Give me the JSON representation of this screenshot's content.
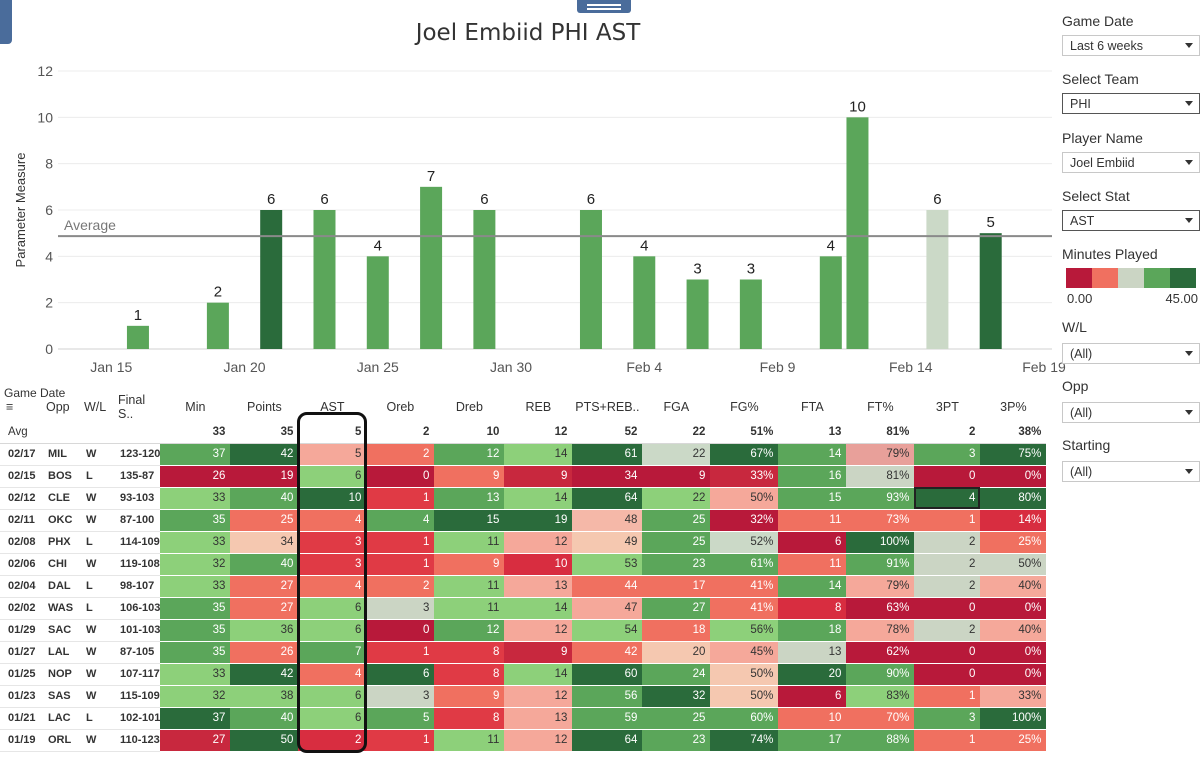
{
  "chart_data": {
    "type": "bar",
    "title": "Joel Embiid PHI AST",
    "ylabel": "Parameter Measure",
    "ylim": [
      0,
      12
    ],
    "yticks": [
      0,
      2,
      4,
      6,
      8,
      10,
      12
    ],
    "xticks": [
      "Jan 15",
      "Jan 20",
      "Jan 25",
      "Jan 30",
      "Feb 4",
      "Feb 9",
      "Feb 14",
      "Feb 19"
    ],
    "average": 4.87,
    "average_label": "Average",
    "grid": true,
    "bars": [
      {
        "date": "01/16",
        "value": 1,
        "color": "#5ba65a"
      },
      {
        "date": "01/19",
        "value": 2,
        "color": "#5ba65a"
      },
      {
        "date": "01/21",
        "value": 6,
        "color": "#2a6b3b"
      },
      {
        "date": "01/23",
        "value": 6,
        "color": "#5ba65a"
      },
      {
        "date": "01/25",
        "value": 4,
        "color": "#5ba65a"
      },
      {
        "date": "01/27",
        "value": 7,
        "color": "#5ba65a"
      },
      {
        "date": "01/29",
        "value": 6,
        "color": "#5ba65a"
      },
      {
        "date": "02/02",
        "value": 6,
        "color": "#5ba65a"
      },
      {
        "date": "02/04",
        "value": 4,
        "color": "#5ba65a"
      },
      {
        "date": "02/06",
        "value": 3,
        "color": "#5ba65a"
      },
      {
        "date": "02/08",
        "value": 3,
        "color": "#5ba65a"
      },
      {
        "date": "02/11",
        "value": 4,
        "color": "#5ba65a"
      },
      {
        "date": "02/12",
        "value": 10,
        "color": "#5ba65a"
      },
      {
        "date": "02/15",
        "value": 6,
        "color": "#cbd9c7"
      },
      {
        "date": "02/17",
        "value": 5,
        "color": "#2a6b3b"
      }
    ]
  },
  "filters": [
    {
      "label": "Game Date",
      "value": "Last 6 weeks"
    },
    {
      "label": "Select Team",
      "value": "PHI"
    },
    {
      "label": "Player Name",
      "value": "Joel Embiid"
    },
    {
      "label": "Select Stat",
      "value": "AST"
    }
  ],
  "minutes_played": {
    "label": "Minutes Played",
    "min": "0.00",
    "max": "45.00",
    "colors": [
      "#b8193a",
      "#f07060",
      "#cbd5c4",
      "#5ba65a",
      "#2a6b3b"
    ]
  },
  "filters2": [
    {
      "label": "W/L",
      "value": "(All)"
    },
    {
      "label": "Opp",
      "value": "(All)"
    },
    {
      "label": "Starting",
      "value": "(All)"
    }
  ],
  "table": {
    "game_date_label": "Game Date",
    "headers": [
      "Opp",
      "W/L",
      "Final S..",
      "Min",
      "Points",
      "AST",
      "Oreb",
      "Dreb",
      "REB",
      "PTS+REB..",
      "FGA",
      "FG%",
      "FTA",
      "FT%",
      "3PT",
      "3P%"
    ],
    "avg": {
      "label": "Avg",
      "values": [
        "33",
        "35",
        "5",
        "2",
        "10",
        "12",
        "52",
        "22",
        "51%",
        "13",
        "81%",
        "2",
        "38%"
      ]
    },
    "rows": [
      {
        "date": "02/17",
        "opp": "MIL",
        "wl": "W",
        "score": "123-120",
        "cells": [
          [
            "37",
            "#5ba65a"
          ],
          [
            "42",
            "#2a6b3b"
          ],
          [
            "5",
            "#f5a89a"
          ],
          [
            "2",
            "#f07060"
          ],
          [
            "12",
            "#5ba65a"
          ],
          [
            "14",
            "#8dd07a"
          ],
          [
            "61",
            "#2a6b3b"
          ],
          [
            "22",
            "#cbd9c7"
          ],
          [
            "67%",
            "#2a6b3b"
          ],
          [
            "14",
            "#5ba65a"
          ],
          [
            "79%",
            "#e8a09a"
          ],
          [
            "3",
            "#5ba65a"
          ],
          [
            "75%",
            "#2a6b3b"
          ]
        ]
      },
      {
        "date": "02/15",
        "opp": "BOS",
        "wl": "L",
        "score": "135-87",
        "cells": [
          [
            "26",
            "#b8193a"
          ],
          [
            "19",
            "#b8193a"
          ],
          [
            "6",
            "#8dd07a"
          ],
          [
            "0",
            "#b8193a"
          ],
          [
            "9",
            "#f07060"
          ],
          [
            "9",
            "#c8283e"
          ],
          [
            "34",
            "#b8193a"
          ],
          [
            "9",
            "#b8193a"
          ],
          [
            "33%",
            "#c8283e"
          ],
          [
            "16",
            "#5ba65a"
          ],
          [
            "81%",
            "#cbd5c4"
          ],
          [
            "0",
            "#b8193a"
          ],
          [
            "0%",
            "#b8193a"
          ]
        ]
      },
      {
        "date": "02/12",
        "opp": "CLE",
        "wl": "W",
        "score": "93-103",
        "cells": [
          [
            "33",
            "#8dd07a"
          ],
          [
            "40",
            "#5ba65a"
          ],
          [
            "10",
            "#2a6b3b"
          ],
          [
            "1",
            "#e03a45"
          ],
          [
            "13",
            "#5ba65a"
          ],
          [
            "14",
            "#8dd07a"
          ],
          [
            "64",
            "#2a6b3b"
          ],
          [
            "22",
            "#8dd07a"
          ],
          [
            "50%",
            "#f5a89a"
          ],
          [
            "15",
            "#5ba65a"
          ],
          [
            "93%",
            "#5ba65a"
          ],
          [
            "4",
            "#2a6b3b"
          ],
          [
            "80%",
            "#2a6b3b"
          ]
        ]
      },
      {
        "date": "02/11",
        "opp": "OKC",
        "wl": "W",
        "score": "87-100",
        "cells": [
          [
            "35",
            "#5ba65a"
          ],
          [
            "25",
            "#f07060"
          ],
          [
            "4",
            "#f07060"
          ],
          [
            "4",
            "#5ba65a"
          ],
          [
            "15",
            "#2a6b3b"
          ],
          [
            "19",
            "#2a6b3b"
          ],
          [
            "48",
            "#f5b8a8"
          ],
          [
            "25",
            "#5ba65a"
          ],
          [
            "32%",
            "#b8193a"
          ],
          [
            "11",
            "#f07060"
          ],
          [
            "73%",
            "#f07060"
          ],
          [
            "1",
            "#f07060"
          ],
          [
            "14%",
            "#d82d40"
          ]
        ]
      },
      {
        "date": "02/08",
        "opp": "PHX",
        "wl": "L",
        "score": "114-109",
        "cells": [
          [
            "33",
            "#8dd07a"
          ],
          [
            "34",
            "#f5c8b0"
          ],
          [
            "3",
            "#e03a45"
          ],
          [
            "1",
            "#e03a45"
          ],
          [
            "11",
            "#8dd07a"
          ],
          [
            "12",
            "#f5a89a"
          ],
          [
            "49",
            "#f5c8b0"
          ],
          [
            "25",
            "#5ba65a"
          ],
          [
            "52%",
            "#cbd9c7"
          ],
          [
            "6",
            "#b8193a"
          ],
          [
            "100%",
            "#2a6b3b"
          ],
          [
            "2",
            "#cbd5c4"
          ],
          [
            "25%",
            "#f07060"
          ]
        ]
      },
      {
        "date": "02/06",
        "opp": "CHI",
        "wl": "W",
        "score": "119-108",
        "cells": [
          [
            "32",
            "#8dd07a"
          ],
          [
            "40",
            "#5ba65a"
          ],
          [
            "3",
            "#e03a45"
          ],
          [
            "1",
            "#e03a45"
          ],
          [
            "9",
            "#f07060"
          ],
          [
            "10",
            "#d82d40"
          ],
          [
            "53",
            "#8dd07a"
          ],
          [
            "23",
            "#5ba65a"
          ],
          [
            "61%",
            "#5ba65a"
          ],
          [
            "11",
            "#f07060"
          ],
          [
            "91%",
            "#5ba65a"
          ],
          [
            "2",
            "#cbd5c4"
          ],
          [
            "50%",
            "#cbd5c4"
          ]
        ]
      },
      {
        "date": "02/04",
        "opp": "DAL",
        "wl": "L",
        "score": "98-107",
        "cells": [
          [
            "33",
            "#8dd07a"
          ],
          [
            "27",
            "#f07060"
          ],
          [
            "4",
            "#f07060"
          ],
          [
            "2",
            "#f07060"
          ],
          [
            "11",
            "#8dd07a"
          ],
          [
            "13",
            "#f5a89a"
          ],
          [
            "44",
            "#f07060"
          ],
          [
            "17",
            "#f07060"
          ],
          [
            "41%",
            "#f07060"
          ],
          [
            "14",
            "#5ba65a"
          ],
          [
            "79%",
            "#f5a89a"
          ],
          [
            "2",
            "#cbd5c4"
          ],
          [
            "40%",
            "#f5a89a"
          ]
        ]
      },
      {
        "date": "02/02",
        "opp": "WAS",
        "wl": "L",
        "score": "106-103",
        "cells": [
          [
            "35",
            "#5ba65a"
          ],
          [
            "27",
            "#f07060"
          ],
          [
            "6",
            "#8dd07a"
          ],
          [
            "3",
            "#cbd5c4"
          ],
          [
            "11",
            "#8dd07a"
          ],
          [
            "14",
            "#8dd07a"
          ],
          [
            "47",
            "#f5a89a"
          ],
          [
            "27",
            "#5ba65a"
          ],
          [
            "41%",
            "#f07060"
          ],
          [
            "8",
            "#d82d40"
          ],
          [
            "63%",
            "#b8193a"
          ],
          [
            "0",
            "#b8193a"
          ],
          [
            "0%",
            "#b8193a"
          ]
        ]
      },
      {
        "date": "01/29",
        "opp": "SAC",
        "wl": "W",
        "score": "101-103",
        "cells": [
          [
            "35",
            "#5ba65a"
          ],
          [
            "36",
            "#8dd07a"
          ],
          [
            "6",
            "#8dd07a"
          ],
          [
            "0",
            "#b8193a"
          ],
          [
            "12",
            "#5ba65a"
          ],
          [
            "12",
            "#f5a89a"
          ],
          [
            "54",
            "#8dd07a"
          ],
          [
            "18",
            "#f07060"
          ],
          [
            "56%",
            "#8dd07a"
          ],
          [
            "18",
            "#5ba65a"
          ],
          [
            "78%",
            "#f5a89a"
          ],
          [
            "2",
            "#cbd5c4"
          ],
          [
            "40%",
            "#f5a89a"
          ]
        ]
      },
      {
        "date": "01/27",
        "opp": "LAL",
        "wl": "W",
        "score": "87-105",
        "cells": [
          [
            "35",
            "#5ba65a"
          ],
          [
            "26",
            "#f07060"
          ],
          [
            "7",
            "#5ba65a"
          ],
          [
            "1",
            "#e03a45"
          ],
          [
            "8",
            "#e03a45"
          ],
          [
            "9",
            "#c8283e"
          ],
          [
            "42",
            "#f07060"
          ],
          [
            "20",
            "#f5c8b0"
          ],
          [
            "45%",
            "#f5a89a"
          ],
          [
            "13",
            "#cbd5c4"
          ],
          [
            "62%",
            "#b8193a"
          ],
          [
            "0",
            "#b8193a"
          ],
          [
            "0%",
            "#b8193a"
          ]
        ]
      },
      {
        "date": "01/25",
        "opp": "NOP",
        "wl": "W",
        "score": "107-117",
        "cells": [
          [
            "33",
            "#8dd07a"
          ],
          [
            "42",
            "#2a6b3b"
          ],
          [
            "4",
            "#f07060"
          ],
          [
            "6",
            "#2a6b3b"
          ],
          [
            "8",
            "#e03a45"
          ],
          [
            "14",
            "#8dd07a"
          ],
          [
            "60",
            "#2a6b3b"
          ],
          [
            "24",
            "#5ba65a"
          ],
          [
            "50%",
            "#f5c8b0"
          ],
          [
            "20",
            "#2a6b3b"
          ],
          [
            "90%",
            "#5ba65a"
          ],
          [
            "0",
            "#b8193a"
          ],
          [
            "0%",
            "#b8193a"
          ]
        ]
      },
      {
        "date": "01/23",
        "opp": "SAS",
        "wl": "W",
        "score": "115-109",
        "cells": [
          [
            "32",
            "#8dd07a"
          ],
          [
            "38",
            "#8dd07a"
          ],
          [
            "6",
            "#8dd07a"
          ],
          [
            "3",
            "#cbd5c4"
          ],
          [
            "9",
            "#f07060"
          ],
          [
            "12",
            "#f5a89a"
          ],
          [
            "56",
            "#5ba65a"
          ],
          [
            "32",
            "#2a6b3b"
          ],
          [
            "50%",
            "#f5c8b0"
          ],
          [
            "6",
            "#b8193a"
          ],
          [
            "83%",
            "#8dd07a"
          ],
          [
            "1",
            "#f07060"
          ],
          [
            "33%",
            "#f5a89a"
          ]
        ]
      },
      {
        "date": "01/21",
        "opp": "LAC",
        "wl": "L",
        "score": "102-101",
        "cells": [
          [
            "37",
            "#2a6b3b"
          ],
          [
            "40",
            "#5ba65a"
          ],
          [
            "6",
            "#8dd07a"
          ],
          [
            "5",
            "#5ba65a"
          ],
          [
            "8",
            "#e03a45"
          ],
          [
            "13",
            "#f5a89a"
          ],
          [
            "59",
            "#5ba65a"
          ],
          [
            "25",
            "#5ba65a"
          ],
          [
            "60%",
            "#5ba65a"
          ],
          [
            "10",
            "#f07060"
          ],
          [
            "70%",
            "#f07060"
          ],
          [
            "3",
            "#5ba65a"
          ],
          [
            "100%",
            "#2a6b3b"
          ]
        ]
      },
      {
        "date": "01/19",
        "opp": "ORL",
        "wl": "W",
        "score": "110-123",
        "cells": [
          [
            "27",
            "#c8283e"
          ],
          [
            "50",
            "#2a6b3b"
          ],
          [
            "2",
            "#d82d40"
          ],
          [
            "1",
            "#e03a45"
          ],
          [
            "11",
            "#8dd07a"
          ],
          [
            "12",
            "#f5a89a"
          ],
          [
            "64",
            "#2a6b3b"
          ],
          [
            "23",
            "#5ba65a"
          ],
          [
            "74%",
            "#2a6b3b"
          ],
          [
            "17",
            "#5ba65a"
          ],
          [
            "88%",
            "#5ba65a"
          ],
          [
            "1",
            "#f07060"
          ],
          [
            "25%",
            "#f07060"
          ]
        ]
      }
    ]
  }
}
